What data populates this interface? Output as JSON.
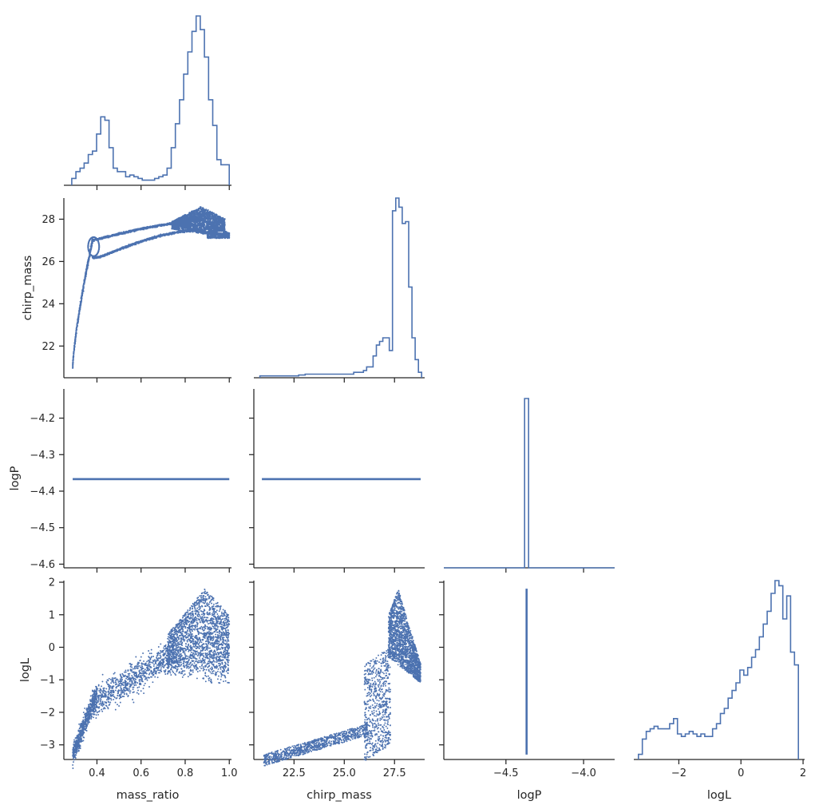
{
  "chart_data": {
    "type": "corner",
    "variables": [
      "mass_ratio",
      "chirp_mass",
      "logP",
      "logL"
    ],
    "ranges": {
      "mass_ratio": [
        0.25,
        1.01
      ],
      "chirp_mass": [
        20.5,
        29.0
      ],
      "logP": [
        -4.61,
        -4.12
      ],
      "logL": [
        -3.45,
        2.05
      ]
    },
    "logP_x_range": [
      -4.9,
      -3.8
    ],
    "logP_constant": -4.367,
    "ticks": {
      "mass_ratio": [
        {
          "v": 0.4,
          "label": "0.4"
        },
        {
          "v": 0.6,
          "label": "0.6"
        },
        {
          "v": 0.8,
          "label": "0.8"
        },
        {
          "v": 1.0,
          "label": "1.0"
        }
      ],
      "chirp_mass": [
        {
          "v": 22,
          "label": "22"
        },
        {
          "v": 24,
          "label": "24"
        },
        {
          "v": 26,
          "label": "26"
        },
        {
          "v": 28,
          "label": "28"
        }
      ],
      "chirp_mass_x": [
        {
          "v": 22.5,
          "label": "22.5"
        },
        {
          "v": 25.0,
          "label": "25.0"
        },
        {
          "v": 27.5,
          "label": "27.5"
        }
      ],
      "logP": [
        {
          "v": -4.2,
          "label": "−4.2"
        },
        {
          "v": -4.3,
          "label": "−4.3"
        },
        {
          "v": -4.4,
          "label": "−4.4"
        },
        {
          "v": -4.5,
          "label": "−4.5"
        },
        {
          "v": -4.6,
          "label": "−4.6"
        }
      ],
      "logP_x": [
        {
          "v": -4.5,
          "label": "−4.5"
        },
        {
          "v": -4.0,
          "label": "−4.0"
        }
      ],
      "logL": [
        {
          "v": 2,
          "label": "2"
        },
        {
          "v": 1,
          "label": "1"
        },
        {
          "v": 0,
          "label": "0"
        },
        {
          "v": -1,
          "label": "−1"
        },
        {
          "v": -2,
          "label": "−2"
        },
        {
          "v": -3,
          "label": "−3"
        }
      ],
      "logL_x": [
        {
          "v": -2,
          "label": "−2"
        },
        {
          "v": 0,
          "label": "0"
        },
        {
          "v": 2,
          "label": "2"
        }
      ]
    },
    "hist_mass_ratio": {
      "x0": 0.2857,
      "x1": 1.0,
      "counts": [
        4,
        8,
        10,
        13,
        18,
        20,
        30,
        40,
        38,
        22,
        10,
        8,
        8,
        5,
        6,
        5,
        4,
        3,
        3,
        3,
        4,
        5,
        6,
        10,
        22,
        36,
        50,
        65,
        78,
        90,
        99,
        91,
        75,
        50,
        35,
        15,
        12,
        12
      ]
    },
    "hist_chirp_mass": {
      "x0": 20.8,
      "x1": 28.85,
      "counts": [
        1,
        1,
        1,
        1,
        1,
        1,
        1,
        1,
        1,
        1,
        1,
        1,
        1.5,
        1.5,
        2,
        2,
        2,
        2,
        2,
        2,
        2,
        2,
        2,
        2,
        2,
        2,
        2,
        2,
        2,
        3,
        3,
        3,
        4,
        6,
        6,
        12,
        18,
        20,
        22,
        22,
        15,
        92,
        99,
        94,
        85,
        86,
        50,
        22,
        10,
        3
      ]
    },
    "hist_logP": {
      "x0": -4.9,
      "x1": -3.8,
      "peak": -4.367
    },
    "hist_logL": {
      "x0": -3.3,
      "x1": 1.85,
      "counts": [
        2,
        8,
        11,
        12,
        13,
        12,
        12,
        12,
        14,
        16,
        10,
        9,
        10,
        11,
        10,
        9,
        10,
        9,
        9,
        12,
        14,
        18,
        20,
        24,
        27,
        30,
        35,
        33,
        36,
        40,
        43,
        48,
        53,
        58,
        65,
        70,
        68,
        55,
        64,
        42,
        37
      ]
    },
    "xlabels": [
      "mass_ratio",
      "chirp_mass",
      "logP",
      "logL"
    ],
    "ylabels": [
      "chirp_mass",
      "logP",
      "logL"
    ],
    "point_color": "#4c72b0",
    "line_color": "#4c72b0",
    "axis_color": "#262626"
  }
}
